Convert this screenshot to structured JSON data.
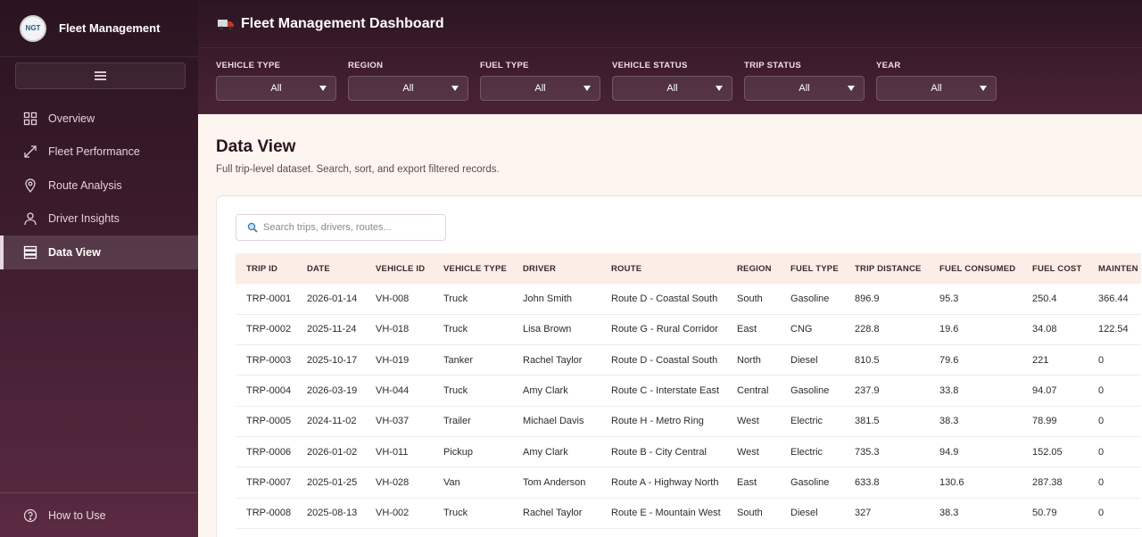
{
  "sidebar": {
    "logo_text": "NGT",
    "brand": "Fleet Management",
    "items": [
      {
        "label": "Overview",
        "icon": "grid-icon"
      },
      {
        "label": "Fleet Performance",
        "icon": "expand-arrows-icon"
      },
      {
        "label": "Route Analysis",
        "icon": "map-pin-icon"
      },
      {
        "label": "Driver Insights",
        "icon": "user-icon"
      },
      {
        "label": "Data View",
        "icon": "stack-icon",
        "active": true
      }
    ],
    "help_label": "How to Use"
  },
  "header": {
    "title": "Fleet Management Dashboard",
    "filters": [
      {
        "label": "VEHICLE TYPE",
        "value": "All"
      },
      {
        "label": "REGION",
        "value": "All"
      },
      {
        "label": "FUEL TYPE",
        "value": "All"
      },
      {
        "label": "VEHICLE STATUS",
        "value": "All"
      },
      {
        "label": "TRIP STATUS",
        "value": "All"
      },
      {
        "label": "YEAR",
        "value": "All"
      }
    ]
  },
  "main": {
    "title": "Data View",
    "subtitle": "Full trip-level dataset. Search, sort, and export filtered records.",
    "search_placeholder": "Search trips, drivers, routes...",
    "columns": [
      "TRIP ID",
      "DATE",
      "VEHICLE ID",
      "VEHICLE TYPE",
      "DRIVER",
      "ROUTE",
      "REGION",
      "FUEL TYPE",
      "TRIP DISTANCE",
      "FUEL CONSUMED",
      "FUEL COST",
      "MAINTEN"
    ],
    "rows": [
      [
        "TRP-0001",
        "2026-01-14",
        "VH-008",
        "Truck",
        "John Smith",
        "Route D - Coastal South",
        "South",
        "Gasoline",
        "896.9",
        "95.3",
        "250.4",
        "366.44"
      ],
      [
        "TRP-0002",
        "2025-11-24",
        "VH-018",
        "Truck",
        "Lisa Brown",
        "Route G - Rural Corridor",
        "East",
        "CNG",
        "228.8",
        "19.6",
        "34.08",
        "122.54"
      ],
      [
        "TRP-0003",
        "2025-10-17",
        "VH-019",
        "Tanker",
        "Rachel Taylor",
        "Route D - Coastal South",
        "North",
        "Diesel",
        "810.5",
        "79.6",
        "221",
        "0"
      ],
      [
        "TRP-0004",
        "2026-03-19",
        "VH-044",
        "Truck",
        "Amy Clark",
        "Route C - Interstate East",
        "Central",
        "Gasoline",
        "237.9",
        "33.8",
        "94.07",
        "0"
      ],
      [
        "TRP-0005",
        "2024-11-02",
        "VH-037",
        "Trailer",
        "Michael Davis",
        "Route H - Metro Ring",
        "West",
        "Electric",
        "381.5",
        "38.3",
        "78.99",
        "0"
      ],
      [
        "TRP-0006",
        "2026-01-02",
        "VH-011",
        "Pickup",
        "Amy Clark",
        "Route B - City Central",
        "West",
        "Electric",
        "735.3",
        "94.9",
        "152.05",
        "0"
      ],
      [
        "TRP-0007",
        "2025-01-25",
        "VH-028",
        "Van",
        "Tom Anderson",
        "Route A - Highway North",
        "East",
        "Gasoline",
        "633.8",
        "130.6",
        "287.38",
        "0"
      ],
      [
        "TRP-0008",
        "2025-08-13",
        "VH-002",
        "Truck",
        "Rachel Taylor",
        "Route E - Mountain West",
        "South",
        "Diesel",
        "327",
        "38.3",
        "50.79",
        "0"
      ]
    ]
  }
}
